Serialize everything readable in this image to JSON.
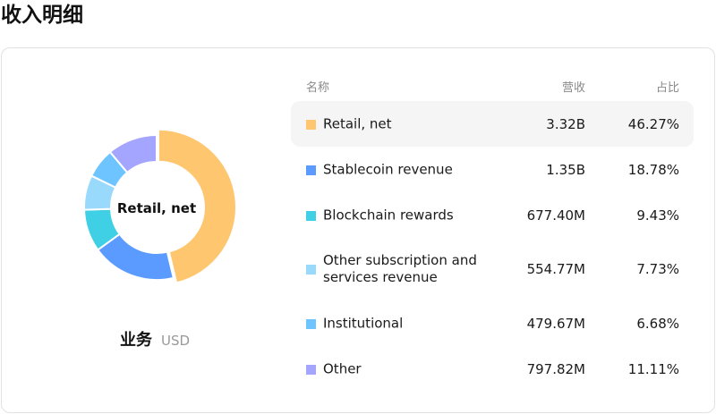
{
  "page": {
    "title": "收入明细"
  },
  "donut": {
    "center_label": "Retail, net",
    "caption_category": "业务",
    "caption_unit": "USD"
  },
  "table": {
    "headers": {
      "name": "名称",
      "revenue": "营收",
      "share": "占比"
    },
    "rows": [
      {
        "name": "Retail, net",
        "revenue": "3.32B",
        "share": "46.27%",
        "color": "#FFC670",
        "active": true
      },
      {
        "name": "Stablecoin revenue",
        "revenue": "1.35B",
        "share": "18.78%",
        "color": "#5B9BFF"
      },
      {
        "name": "Blockchain rewards",
        "revenue": "677.40M",
        "share": "9.43%",
        "color": "#3FD0E6"
      },
      {
        "name": "Other subscription and services revenue",
        "revenue": "554.77M",
        "share": "7.73%",
        "color": "#99D9FC"
      },
      {
        "name": "Institutional",
        "revenue": "479.67M",
        "share": "6.68%",
        "color": "#6EC4FF"
      },
      {
        "name": "Other",
        "revenue": "797.82M",
        "share": "11.11%",
        "color": "#A3A5FF"
      }
    ]
  },
  "chart_data": {
    "type": "pie",
    "title": "收入明细",
    "subtitle": "业务 USD",
    "center_label": "Retail, net",
    "categories": [
      "Retail, net",
      "Stablecoin revenue",
      "Blockchain rewards",
      "Other subscription and services revenue",
      "Institutional",
      "Other"
    ],
    "values": [
      3320000000,
      1350000000,
      677400000,
      554770000,
      479670000,
      797820000
    ],
    "percentages": [
      46.27,
      18.78,
      9.43,
      7.73,
      6.68,
      11.11
    ],
    "colors": [
      "#FFC670",
      "#5B9BFF",
      "#3FD0E6",
      "#99D9FC",
      "#6EC4FF",
      "#A3A5FF"
    ],
    "donut": true,
    "legend_position": "right-table"
  }
}
